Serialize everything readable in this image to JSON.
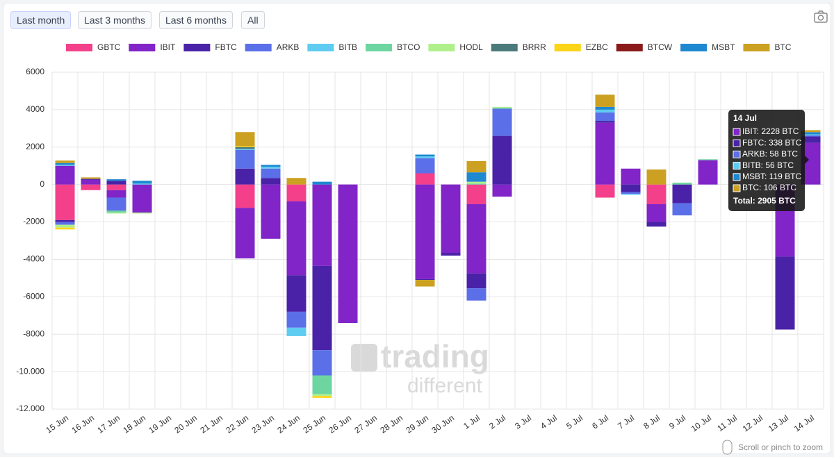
{
  "buttons": [
    "Last month",
    "Last 3 months",
    "Last 6 months",
    "All"
  ],
  "zoom_hint": "Scroll or pinch to zoom",
  "watermark": [
    "trading",
    "different"
  ],
  "chart_data": {
    "type": "bar",
    "stacked": true,
    "categories": [
      "15 Jun",
      "16 Jun",
      "17 Jun",
      "18 Jun",
      "19 Jun",
      "20 Jun",
      "21 Jun",
      "22 Jun",
      "23 Jun",
      "24 Jun",
      "25 Jun",
      "26 Jun",
      "27 Jun",
      "28 Jun",
      "29 Jun",
      "30 Jun",
      "1 Jul",
      "2 Jul",
      "3 Jul",
      "4 Jul",
      "5 Jul",
      "6 Jul",
      "7 Jul",
      "8 Jul",
      "9 Jul",
      "10 Jul",
      "11 Jul",
      "12 Jul",
      "13 Jul",
      "14 Jul"
    ],
    "series": [
      {
        "name": "GBTC",
        "color": "#f43f8b",
        "values": [
          -1900,
          -300,
          -300,
          0,
          0,
          0,
          0,
          -1250,
          0,
          -900,
          0,
          0,
          0,
          0,
          600,
          0,
          -1050,
          0,
          0,
          0,
          0,
          -700,
          0,
          -1050,
          0,
          0,
          0,
          0,
          0,
          0
        ]
      },
      {
        "name": "IBIT",
        "color": "#8124c8",
        "values": [
          1000,
          250,
          -400,
          -1500,
          0,
          0,
          0,
          -2700,
          -2900,
          -3950,
          -4350,
          -7400,
          0,
          0,
          -5050,
          -3650,
          -3700,
          -650,
          0,
          0,
          0,
          3300,
          850,
          -950,
          0,
          1300,
          0,
          0,
          -3850,
          2228
        ]
      },
      {
        "name": "FBTC",
        "color": "#4a22a8",
        "values": [
          -100,
          50,
          200,
          0,
          0,
          0,
          0,
          850,
          350,
          -1950,
          -4500,
          0,
          0,
          0,
          -50,
          -150,
          -800,
          2600,
          0,
          0,
          0,
          100,
          -400,
          -250,
          -1000,
          0,
          0,
          0,
          -3900,
          338
        ]
      },
      {
        "name": "ARKB",
        "color": "#5b6fe8",
        "values": [
          -150,
          0,
          -700,
          0,
          0,
          0,
          0,
          1000,
          500,
          -850,
          -1350,
          0,
          0,
          0,
          800,
          0,
          -650,
          1450,
          0,
          0,
          0,
          450,
          -100,
          0,
          -650,
          0,
          0,
          0,
          0,
          58
        ]
      },
      {
        "name": "BITB",
        "color": "#5ecbf0",
        "values": [
          50,
          0,
          0,
          50,
          0,
          0,
          0,
          50,
          100,
          -450,
          0,
          0,
          0,
          0,
          100,
          0,
          0,
          0,
          0,
          0,
          0,
          150,
          -50,
          0,
          0,
          0,
          0,
          0,
          0,
          56
        ]
      },
      {
        "name": "BTCO",
        "color": "#6dd6a0",
        "values": [
          0,
          0,
          -100,
          0,
          0,
          0,
          0,
          0,
          0,
          0,
          -1000,
          0,
          0,
          0,
          0,
          0,
          50,
          50,
          0,
          0,
          0,
          0,
          0,
          0,
          100,
          50,
          0,
          0,
          0,
          0
        ]
      },
      {
        "name": "HODL",
        "color": "#b0f08c",
        "values": [
          -150,
          0,
          -50,
          -50,
          0,
          0,
          0,
          0,
          0,
          0,
          -100,
          0,
          0,
          0,
          0,
          0,
          100,
          50,
          0,
          0,
          0,
          0,
          0,
          0,
          0,
          0,
          0,
          0,
          0,
          0
        ]
      },
      {
        "name": "BRRR",
        "color": "#4a7a7a",
        "values": [
          0,
          0,
          0,
          0,
          0,
          0,
          0,
          100,
          0,
          0,
          0,
          0,
          0,
          0,
          0,
          0,
          0,
          0,
          0,
          0,
          0,
          0,
          0,
          0,
          0,
          0,
          0,
          0,
          0,
          0
        ]
      },
      {
        "name": "EZBC",
        "color": "#fcd418",
        "values": [
          -100,
          0,
          0,
          0,
          0,
          0,
          0,
          50,
          0,
          0,
          -100,
          0,
          0,
          0,
          0,
          0,
          0,
          0,
          0,
          0,
          0,
          0,
          0,
          0,
          0,
          0,
          0,
          0,
          0,
          0
        ]
      },
      {
        "name": "BTCW",
        "color": "#8b1a1a",
        "values": [
          0,
          0,
          0,
          0,
          0,
          0,
          0,
          0,
          0,
          0,
          0,
          0,
          0,
          0,
          0,
          0,
          0,
          0,
          0,
          0,
          0,
          0,
          0,
          0,
          0,
          0,
          0,
          0,
          0,
          0
        ]
      },
      {
        "name": "MSBT",
        "color": "#1e88d0",
        "values": [
          100,
          0,
          80,
          150,
          0,
          0,
          0,
          0,
          100,
          0,
          150,
          0,
          0,
          0,
          100,
          0,
          500,
          0,
          0,
          0,
          0,
          150,
          0,
          0,
          0,
          0,
          0,
          0,
          0,
          119
        ]
      },
      {
        "name": "BTC",
        "color": "#cca020",
        "values": [
          130,
          80,
          0,
          0,
          0,
          0,
          0,
          750,
          0,
          350,
          0,
          0,
          0,
          0,
          -350,
          0,
          600,
          0,
          0,
          0,
          0,
          650,
          0,
          800,
          0,
          0,
          0,
          0,
          0,
          106
        ]
      }
    ],
    "ylim": [
      -12000,
      6000
    ],
    "yticks": [
      6000,
      4000,
      2000,
      0,
      -2000,
      -4000,
      -6000,
      -8000,
      {
        "value": -10000,
        "label": "-10.000"
      },
      {
        "value": -12000,
        "label": "-12.000"
      }
    ],
    "grid": true,
    "legend": "top",
    "tooltip": {
      "title": "14 Jul",
      "lines": [
        "IBIT: 2228 BTC",
        "FBTC: 338 BTC",
        "ARKB: 58 BTC",
        "BITB: 56 BTC",
        "MSBT: 119 BTC",
        "BTC: 106 BTC"
      ],
      "total": "Total: 2905 BTC"
    }
  }
}
